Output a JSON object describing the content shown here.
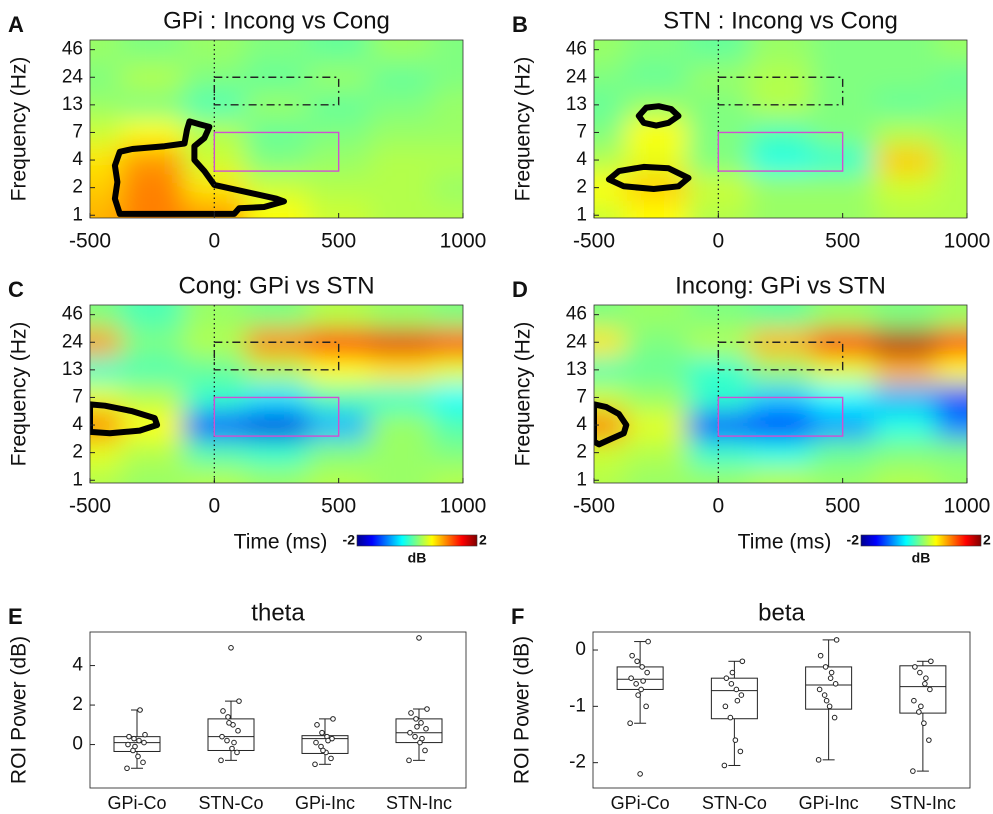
{
  "chart_data": [
    {
      "type": "heatmap",
      "panel": "A",
      "title": "GPi : Incong vs Cong",
      "ylabel": "Frequency (Hz)",
      "x": [
        -500,
        -250,
        0,
        250,
        500,
        750,
        1000
      ],
      "z": [
        [
          0.8,
          1.0,
          0.9,
          0.5,
          0.3,
          0.2,
          0.2
        ],
        [
          0.7,
          1.0,
          0.6,
          0.3,
          0.2,
          0.2,
          0.1
        ],
        [
          0.6,
          0.9,
          0.3,
          0.0,
          0.1,
          0.2,
          0.2
        ],
        [
          0.3,
          0.5,
          0.2,
          -0.1,
          0.0,
          0.1,
          0.1
        ],
        [
          0.1,
          0.0,
          -0.2,
          0.1,
          -0.1,
          0.0,
          0.1
        ],
        [
          0.0,
          0.2,
          0.0,
          -0.1,
          0.1,
          -0.1,
          0.0
        ],
        [
          0.1,
          0.0,
          0.1,
          0.0,
          -0.1,
          0.1,
          0.0
        ]
      ],
      "clim": [
        -2,
        2
      ],
      "xlim": [
        -500,
        1000
      ],
      "xticks": [
        -500,
        0,
        500,
        1000
      ],
      "ylim": [
        -0.1,
        6.35
      ],
      "yticks": [
        {
          "value": 0,
          "label": "1"
        },
        {
          "value": 1,
          "label": "2"
        },
        {
          "value": 2,
          "label": "4"
        },
        {
          "value": 3,
          "label": "7"
        },
        {
          "value": 4,
          "label": "13"
        },
        {
          "value": 5,
          "label": "24"
        },
        {
          "value": 6,
          "label": "46"
        }
      ],
      "event_x": 0,
      "rois": [
        {
          "x": [
            0,
            500
          ],
          "y": [
            1.6,
            3.0
          ],
          "color": "#d14fd1",
          "dash": "solid"
        },
        {
          "x": [
            0,
            500
          ],
          "y": [
            4.0,
            5.0
          ],
          "color": "#222222",
          "dash": "dashdot"
        }
      ],
      "clusters": [
        {
          "x": [
            -380,
            -400,
            -390,
            -400,
            -380,
            -330,
            -200,
            -120,
            -110,
            -100,
            -60,
            -20,
            -40,
            -80,
            -80,
            -40,
            0,
            100,
            250,
            280,
            200,
            100,
            80,
            -200
          ],
          "y": [
            0.05,
            0.6,
            1.2,
            1.8,
            2.3,
            2.4,
            2.5,
            2.6,
            3.1,
            3.4,
            3.3,
            3.2,
            2.8,
            2.5,
            2.0,
            1.6,
            1.1,
            0.9,
            0.6,
            0.5,
            0.3,
            0.25,
            0.05,
            0.05
          ]
        }
      ]
    },
    {
      "type": "heatmap",
      "panel": "B",
      "title": "STN : Incong vs Cong",
      "ylabel": "Frequency (Hz)",
      "x": [
        -500,
        -250,
        0,
        250,
        500,
        750,
        1000
      ],
      "z": [
        [
          0.3,
          0.5,
          0.2,
          0.1,
          0.1,
          0.2,
          0.2
        ],
        [
          0.5,
          0.7,
          0.3,
          0.1,
          0.1,
          0.3,
          0.2
        ],
        [
          0.2,
          0.4,
          0.0,
          -0.4,
          -0.3,
          0.7,
          0.2
        ],
        [
          0.0,
          0.5,
          0.0,
          -0.2,
          0.0,
          0.2,
          0.1
        ],
        [
          -0.1,
          0.1,
          0.0,
          0.2,
          0.0,
          -0.1,
          0.0
        ],
        [
          0.0,
          -0.1,
          0.1,
          0.2,
          0.0,
          0.0,
          -0.1
        ],
        [
          0.1,
          0.0,
          -0.1,
          0.1,
          0.0,
          0.0,
          0.1
        ]
      ],
      "clim": [
        -2,
        2
      ],
      "xlim": [
        -500,
        1000
      ],
      "xticks": [
        -500,
        0,
        500,
        1000
      ],
      "ylim": [
        -0.1,
        6.35
      ],
      "yticks": [
        {
          "value": 0,
          "label": "1"
        },
        {
          "value": 1,
          "label": "2"
        },
        {
          "value": 2,
          "label": "4"
        },
        {
          "value": 3,
          "label": "7"
        },
        {
          "value": 4,
          "label": "13"
        },
        {
          "value": 5,
          "label": "24"
        },
        {
          "value": 6,
          "label": "46"
        }
      ],
      "event_x": 0,
      "rois": [
        {
          "x": [
            0,
            500
          ],
          "y": [
            1.6,
            3.0
          ],
          "color": "#d14fd1",
          "dash": "solid"
        },
        {
          "x": [
            0,
            500
          ],
          "y": [
            4.0,
            5.0
          ],
          "color": "#222222",
          "dash": "dashdot"
        }
      ],
      "clusters": [
        {
          "x": [
            -320,
            -290,
            -240,
            -190,
            -160,
            -200,
            -250,
            -300
          ],
          "y": [
            3.6,
            3.9,
            3.95,
            3.85,
            3.6,
            3.35,
            3.25,
            3.35
          ]
        },
        {
          "x": [
            -440,
            -400,
            -300,
            -200,
            -120,
            -160,
            -260,
            -380
          ],
          "y": [
            1.3,
            1.6,
            1.75,
            1.7,
            1.35,
            1.05,
            0.95,
            1.05
          ]
        }
      ]
    },
    {
      "type": "heatmap",
      "panel": "C",
      "title": "Cong: GPi vs STN",
      "ylabel": "Frequency (Hz)",
      "xlabel": "Time (ms)",
      "x": [
        -500,
        -250,
        0,
        250,
        500,
        750,
        1000
      ],
      "z": [
        [
          0.2,
          0.1,
          0.2,
          0.1,
          0.2,
          0.1,
          0.2
        ],
        [
          0.4,
          0.2,
          -0.2,
          -0.3,
          0.0,
          0.1,
          0.0
        ],
        [
          1.0,
          0.5,
          -1.2,
          -1.6,
          -0.8,
          0.1,
          -0.2
        ],
        [
          0.4,
          0.2,
          -0.3,
          -0.6,
          -0.2,
          -0.3,
          -0.5
        ],
        [
          -0.3,
          -0.2,
          -0.1,
          0.2,
          0.5,
          0.6,
          0.4
        ],
        [
          0.9,
          0.0,
          0.2,
          1.0,
          1.5,
          1.6,
          1.3
        ],
        [
          0.0,
          -0.2,
          0.1,
          0.0,
          0.2,
          0.1,
          0.0
        ]
      ],
      "clim": [
        -2,
        2
      ],
      "xlim": [
        -500,
        1000
      ],
      "xticks": [
        -500,
        0,
        500,
        1000
      ],
      "ylim": [
        -0.1,
        6.35
      ],
      "yticks": [
        {
          "value": 0,
          "label": "1"
        },
        {
          "value": 1,
          "label": "2"
        },
        {
          "value": 2,
          "label": "4"
        },
        {
          "value": 3,
          "label": "7"
        },
        {
          "value": 4,
          "label": "13"
        },
        {
          "value": 5,
          "label": "24"
        },
        {
          "value": 6,
          "label": "46"
        }
      ],
      "event_x": 0,
      "rois": [
        {
          "x": [
            0,
            500
          ],
          "y": [
            1.6,
            3.0
          ],
          "color": "#d14fd1",
          "dash": "solid"
        },
        {
          "x": [
            0,
            500
          ],
          "y": [
            4.0,
            5.0
          ],
          "color": "#222222",
          "dash": "dashdot"
        }
      ],
      "clusters": [
        {
          "x": [
            -500,
            -440,
            -330,
            -240,
            -230,
            -300,
            -420,
            -500
          ],
          "y": [
            2.75,
            2.7,
            2.5,
            2.25,
            2.0,
            1.8,
            1.7,
            1.75
          ]
        }
      ],
      "colorbar": {
        "label": "dB",
        "ticks": [
          -2,
          2
        ]
      }
    },
    {
      "type": "heatmap",
      "panel": "D",
      "title": "Incong: GPi vs STN",
      "ylabel": "Frequency (Hz)",
      "xlabel": "Time (ms)",
      "x": [
        -500,
        -250,
        0,
        250,
        500,
        750,
        1000
      ],
      "z": [
        [
          0.2,
          0.1,
          0.1,
          0.2,
          0.1,
          0.2,
          0.1
        ],
        [
          0.3,
          0.2,
          -0.3,
          -0.4,
          -0.1,
          0.0,
          0.0
        ],
        [
          1.0,
          0.4,
          -1.2,
          -1.5,
          -0.9,
          -0.4,
          -1.0
        ],
        [
          0.3,
          0.1,
          -0.3,
          -0.7,
          -0.5,
          -0.8,
          -1.2
        ],
        [
          -0.2,
          -0.1,
          -0.3,
          0.1,
          0.4,
          0.8,
          0.5
        ],
        [
          0.6,
          0.0,
          0.2,
          0.8,
          1.5,
          1.8,
          1.4
        ],
        [
          0.0,
          0.1,
          0.0,
          -0.1,
          0.1,
          0.0,
          0.1
        ]
      ],
      "clim": [
        -2,
        2
      ],
      "xlim": [
        -500,
        1000
      ],
      "xticks": [
        -500,
        0,
        500,
        1000
      ],
      "ylim": [
        -0.1,
        6.35
      ],
      "yticks": [
        {
          "value": 0,
          "label": "1"
        },
        {
          "value": 1,
          "label": "2"
        },
        {
          "value": 2,
          "label": "4"
        },
        {
          "value": 3,
          "label": "7"
        },
        {
          "value": 4,
          "label": "13"
        },
        {
          "value": 5,
          "label": "24"
        },
        {
          "value": 6,
          "label": "46"
        }
      ],
      "event_x": 0,
      "rois": [
        {
          "x": [
            0,
            500
          ],
          "y": [
            1.6,
            3.0
          ],
          "color": "#d14fd1",
          "dash": "solid"
        },
        {
          "x": [
            0,
            500
          ],
          "y": [
            4.0,
            5.0
          ],
          "color": "#222222",
          "dash": "dashdot"
        }
      ],
      "clusters": [
        {
          "x": [
            -500,
            -450,
            -400,
            -370,
            -380,
            -430,
            -480,
            -500
          ],
          "y": [
            2.75,
            2.65,
            2.4,
            2.0,
            1.7,
            1.5,
            1.3,
            1.4
          ]
        }
      ],
      "colorbar": {
        "label": "dB",
        "ticks": [
          -2,
          2
        ]
      }
    },
    {
      "type": "box",
      "panel": "E",
      "title": "theta",
      "ylabel": "ROI Power (dB)",
      "categories": [
        "GPi-Co",
        "STN-Co",
        "GPi-Inc",
        "STN-Inc"
      ],
      "boxes": [
        {
          "min": -1.2,
          "q1": -0.35,
          "median": 0.1,
          "q3": 0.4,
          "max": 1.75,
          "outliers": [],
          "points": [
            -1.2,
            -0.9,
            -0.6,
            -0.3,
            0.0,
            0.1,
            0.2,
            0.3,
            0.4,
            0.5,
            1.75,
            -0.1
          ]
        },
        {
          "min": -0.8,
          "q1": -0.3,
          "median": 0.4,
          "q3": 1.3,
          "max": 2.2,
          "outliers": [
            4.9
          ],
          "points": [
            -0.8,
            -0.4,
            -0.2,
            0.2,
            0.4,
            0.7,
            1.0,
            1.4,
            1.7,
            2.2,
            0.1,
            1.1
          ]
        },
        {
          "min": -1.0,
          "q1": -0.45,
          "median": 0.3,
          "q3": 0.45,
          "max": 1.3,
          "outliers": [],
          "points": [
            -1.0,
            -0.7,
            -0.4,
            -0.1,
            0.1,
            0.3,
            0.4,
            0.6,
            1.0,
            1.3,
            0.2,
            -0.3
          ]
        },
        {
          "min": -0.8,
          "q1": 0.1,
          "median": 0.6,
          "q3": 1.3,
          "max": 1.8,
          "outliers": [
            5.4
          ],
          "points": [
            -0.8,
            -0.3,
            0.1,
            0.4,
            0.6,
            0.8,
            1.1,
            1.3,
            1.6,
            1.8,
            0.3,
            0.9
          ]
        }
      ],
      "ylim": [
        -2.2,
        5.7
      ],
      "yticks": [
        0,
        2,
        4
      ],
      "color": "#222222"
    },
    {
      "type": "box",
      "panel": "F",
      "title": "beta",
      "ylabel": "ROI Power (dB)",
      "categories": [
        "GPi-Co",
        "STN-Co",
        "GPi-Inc",
        "STN-Inc"
      ],
      "boxes": [
        {
          "min": -1.3,
          "q1": -0.7,
          "median": -0.52,
          "q3": -0.3,
          "max": 0.15,
          "outliers": [
            -2.2
          ],
          "points": [
            -1.3,
            -1.0,
            -0.7,
            -0.6,
            -0.5,
            -0.4,
            -0.3,
            -0.2,
            -0.1,
            0.15,
            -0.55,
            -0.8
          ]
        },
        {
          "min": -2.05,
          "q1": -1.22,
          "median": -0.72,
          "q3": -0.5,
          "max": -0.2,
          "outliers": [],
          "points": [
            -2.05,
            -1.8,
            -1.6,
            -1.2,
            -1.0,
            -0.8,
            -0.7,
            -0.6,
            -0.5,
            -0.2,
            -0.9,
            -0.4
          ]
        },
        {
          "min": -1.95,
          "q1": -1.05,
          "median": -0.62,
          "q3": -0.3,
          "max": 0.18,
          "outliers": [],
          "points": [
            -1.95,
            -1.2,
            -1.0,
            -0.8,
            -0.7,
            -0.6,
            -0.5,
            -0.3,
            -0.1,
            0.18,
            -0.4,
            -0.9
          ]
        },
        {
          "min": -2.15,
          "q1": -1.12,
          "median": -0.65,
          "q3": -0.28,
          "max": -0.2,
          "outliers": [],
          "points": [
            -2.15,
            -1.6,
            -1.3,
            -1.1,
            -0.9,
            -0.7,
            -0.6,
            -0.4,
            -0.3,
            -0.2,
            -0.5,
            -1.0
          ]
        }
      ],
      "ylim": [
        -2.45,
        0.32
      ],
      "yticks": [
        -2,
        -1,
        0
      ],
      "color": "#222222"
    }
  ]
}
